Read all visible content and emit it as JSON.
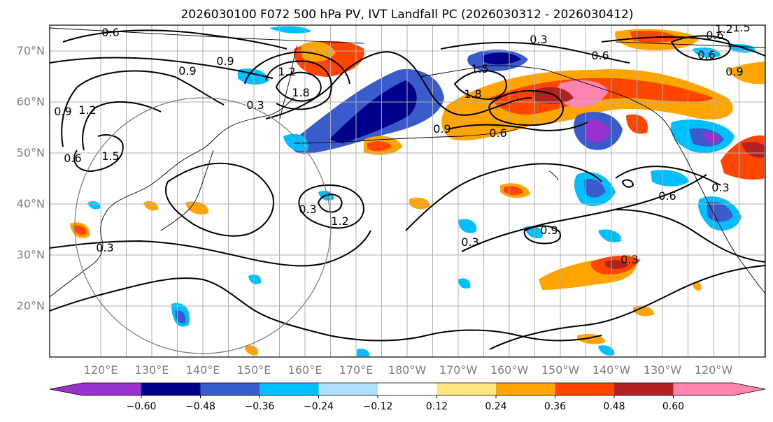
{
  "title": "2026030100 F072 500 hPa PV, IVT Landfall PC (2026030312 - 2026030412)",
  "lat_labels": [
    "70°N",
    "60°N",
    "50°N",
    "40°N",
    "30°N",
    "20°N"
  ],
  "lon_labels": [
    "120°E",
    "130°E",
    "140°E",
    "150°E",
    "160°E",
    "170°E",
    "180°W",
    "170°W",
    "160°W",
    "150°W",
    "140°W",
    "130°W",
    "120°W"
  ],
  "colorbar": {
    "ticks": [
      "−0.60",
      "−0.48",
      "−0.36",
      "−0.24",
      "−0.12",
      "0.12",
      "0.24",
      "0.36",
      "0.48",
      "0.60"
    ],
    "colors": [
      "#9932cc",
      "#00008b",
      "#3a5bcc",
      "#00bfff",
      "#b0e0ff",
      "#ffffff",
      "#ffe680",
      "#ffa500",
      "#ff4500",
      "#b22222",
      "#ff85b0"
    ]
  },
  "contour_labels": [
    "0.6",
    "0.9",
    "0.9",
    "1.2",
    "0.3",
    "1.8",
    "0.9",
    "1.2",
    "0.6",
    "1.5",
    "0.3",
    "0.6",
    "0.3",
    "1.5",
    "1.8",
    "0.9",
    "0.6",
    "0.3",
    "0.9",
    "1.2",
    "0.3",
    "0.6",
    "0.3",
    "0.6",
    "0.3",
    "0.6",
    "0.9",
    "1.2",
    "1.5"
  ],
  "chart_data": {
    "type": "heatmap",
    "title": "2026030100 F072 500 hPa PV, IVT Landfall PC (2026030312 - 2026030412)",
    "lat_range_deg": [
      10,
      75
    ],
    "lon_range_deg": [
      110,
      250
    ],
    "contour_field": "500 hPa PV",
    "contour_levels": [
      0.3,
      0.6,
      0.9,
      1.2,
      1.5,
      1.8
    ],
    "shaded_field": "IVT Landfall PC",
    "shading_levels": [
      -0.6,
      -0.48,
      -0.36,
      -0.24,
      -0.12,
      0.12,
      0.24,
      0.36,
      0.48,
      0.6
    ]
  }
}
